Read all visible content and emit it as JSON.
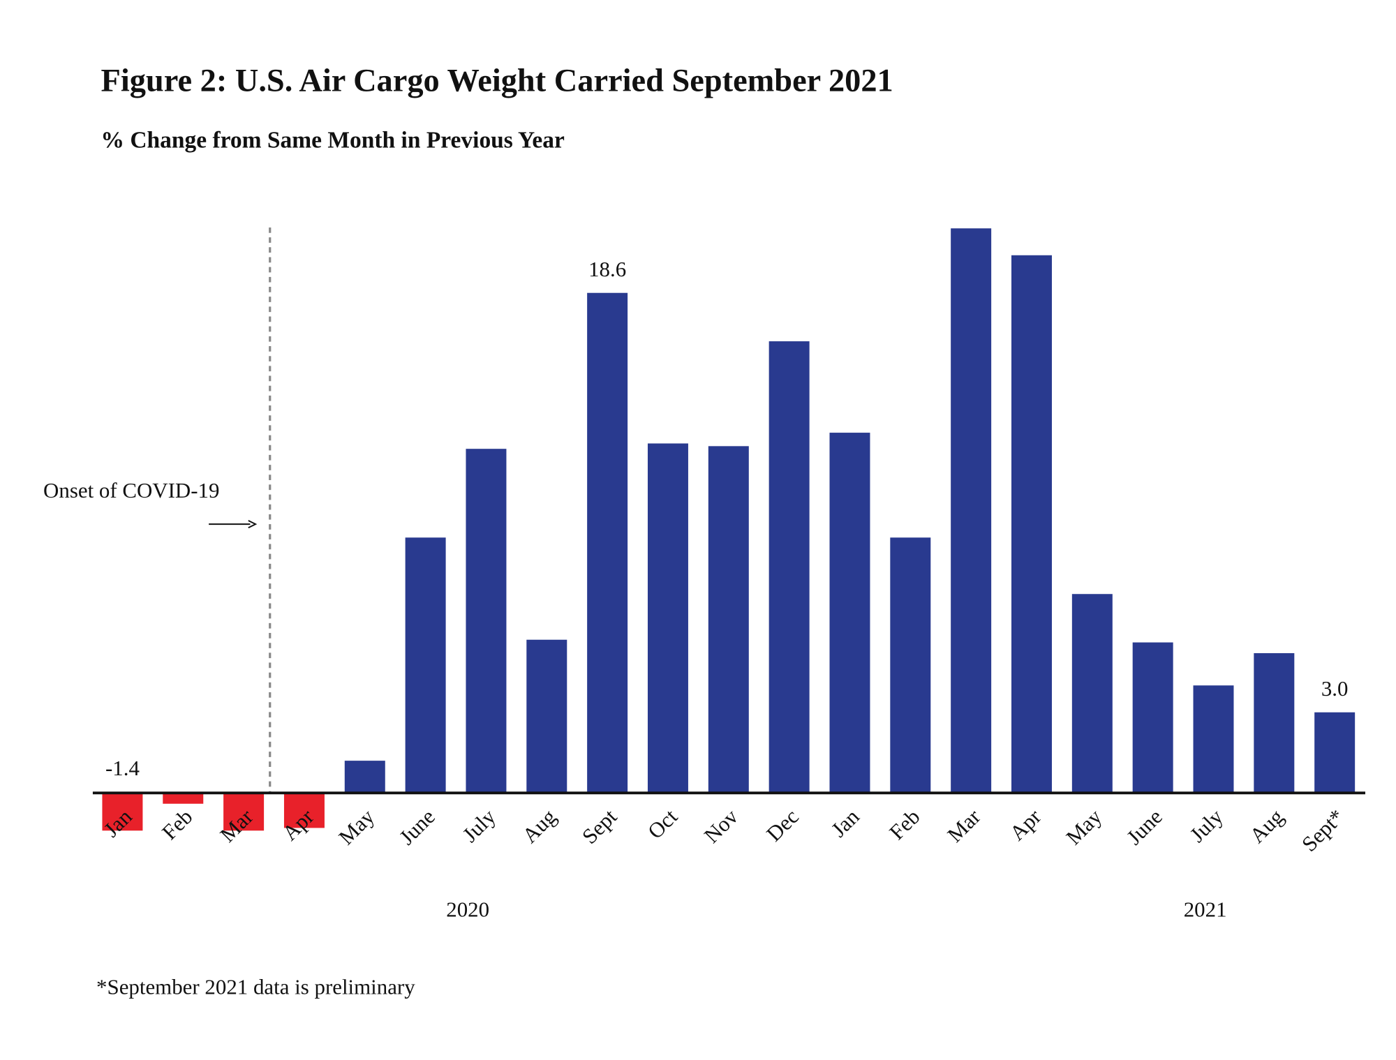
{
  "chart_data": {
    "type": "bar",
    "title": "Figure 2: U.S. Air Cargo Weight Carried September 2021",
    "subtitle": "% Change from Same Month in Previous Year",
    "categories": [
      "Jan",
      "Feb",
      "Mar",
      "Apr",
      "May",
      "June",
      "July",
      "Aug",
      "Sept",
      "Oct",
      "Nov",
      "Dec",
      "Jan",
      "Feb",
      "Mar",
      "Apr",
      "May",
      "June",
      "July",
      "Aug",
      "Sept*"
    ],
    "values": [
      -1.4,
      -0.4,
      -1.4,
      -1.3,
      1.2,
      9.5,
      12.8,
      5.7,
      18.6,
      13.0,
      12.9,
      16.8,
      13.4,
      9.5,
      21.0,
      20.0,
      7.4,
      5.6,
      4.0,
      5.2,
      3.0
    ],
    "value_labels": [
      "-1.4",
      null,
      null,
      null,
      null,
      null,
      null,
      null,
      "18.6",
      null,
      null,
      null,
      null,
      null,
      null,
      null,
      null,
      null,
      null,
      null,
      "3.0"
    ],
    "color": "#293a8f",
    "negative_color": "#e8212a",
    "year_labels": [
      "2020",
      "2021"
    ],
    "annotation": "Onset of COVID-19",
    "footnote": "*September 2021 data is preliminary"
  }
}
